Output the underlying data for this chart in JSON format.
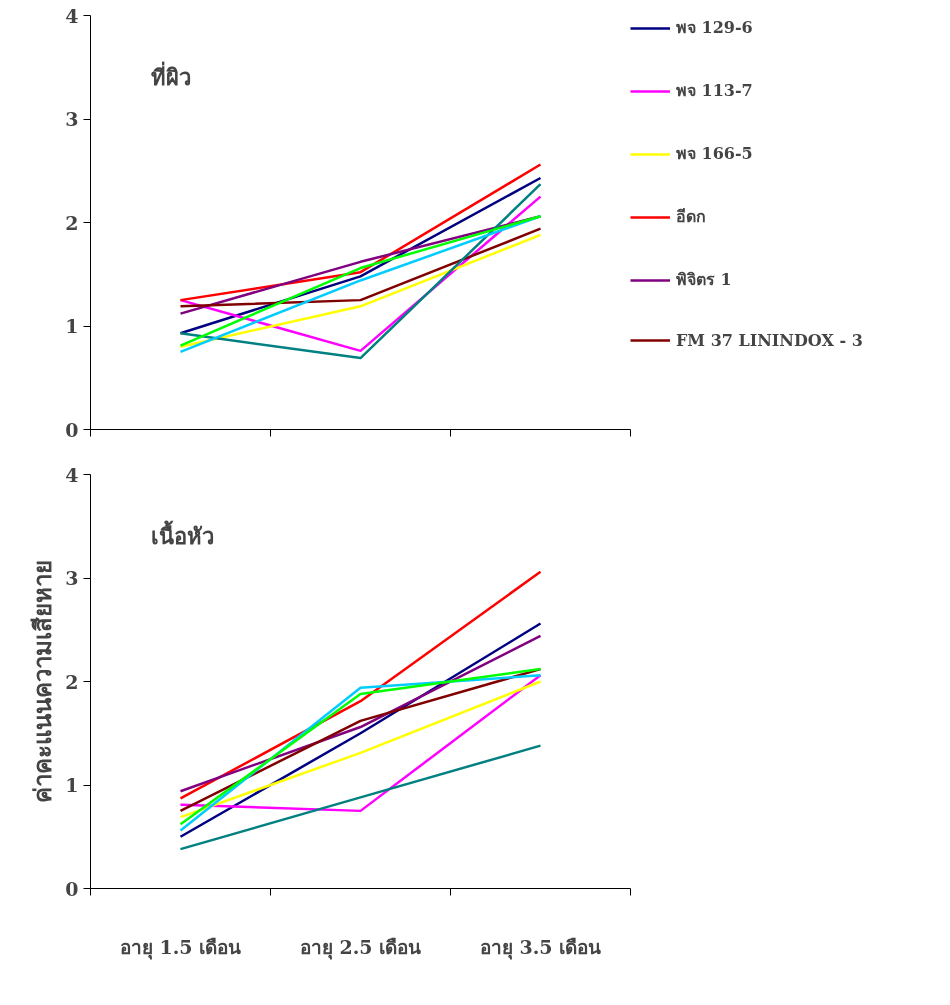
{
  "chart_data": [
    {
      "type": "line",
      "title": "ที่ผิว",
      "ylim": [
        0,
        4
      ],
      "yticks": [
        0,
        1,
        2,
        3,
        4
      ],
      "grid": false,
      "legend": "right",
      "tick_labels": "y",
      "marker": "none",
      "line_style": "solid",
      "series": [
        {
          "name": "พจ 129-6",
          "color": "#000080",
          "values": [
            0.93,
            1.48,
            2.43
          ]
        },
        {
          "name": "พจ 113-7",
          "color": "#ff00ff",
          "values": [
            1.25,
            0.76,
            2.25
          ]
        },
        {
          "name": "พจ 166-5",
          "color": "#ffff00",
          "values": [
            0.8,
            1.19,
            1.88
          ]
        },
        {
          "name": "อีดก",
          "color": "#ff0000",
          "values": [
            1.25,
            1.52,
            2.56
          ]
        },
        {
          "name": "พิจิตร 1",
          "color": "#800080",
          "values": [
            1.12,
            1.62,
            2.06
          ]
        },
        {
          "name": "FM 37 LININDOX - 3",
          "color": "#800000",
          "values": [
            1.19,
            1.25,
            1.94
          ]
        },
        {
          "color": "#008080",
          "values": [
            0.93,
            0.69,
            2.37
          ]
        },
        {
          "color": "#00ccff",
          "values": [
            0.75,
            1.44,
            2.06
          ]
        },
        {
          "color": "#00ff00",
          "values": [
            0.81,
            1.56,
            2.06
          ]
        }
      ]
    },
    {
      "type": "line",
      "title": "เนื้อหัว",
      "ylabel": "ค่าคะแนนความเสียหาย",
      "categories": [
        "อายุ 1.5 เดือน",
        "อายุ 2.5 เดือน",
        "อายุ 3.5 เดือน"
      ],
      "ylim": [
        0,
        4
      ],
      "yticks": [
        0,
        1,
        2,
        3,
        4
      ],
      "grid": false,
      "marker": "none",
      "line_style": "solid",
      "series": [
        {
          "color": "#000080",
          "values": [
            0.5,
            1.5,
            2.56
          ]
        },
        {
          "color": "#ff00ff",
          "values": [
            0.81,
            0.75,
            2.06
          ]
        },
        {
          "color": "#ffff00",
          "values": [
            0.69,
            1.31,
            2.0
          ]
        },
        {
          "color": "#ff0000",
          "values": [
            0.87,
            1.81,
            3.06
          ]
        },
        {
          "color": "#800080",
          "values": [
            0.94,
            1.56,
            2.44
          ]
        },
        {
          "color": "#800000",
          "values": [
            0.75,
            1.62,
            2.12
          ]
        },
        {
          "color": "#008080",
          "values": [
            0.38,
            0.88,
            1.38
          ]
        },
        {
          "color": "#00ccff",
          "values": [
            0.56,
            1.94,
            2.06
          ]
        },
        {
          "color": "#00ff00",
          "values": [
            0.62,
            1.88,
            2.12
          ]
        }
      ]
    }
  ]
}
